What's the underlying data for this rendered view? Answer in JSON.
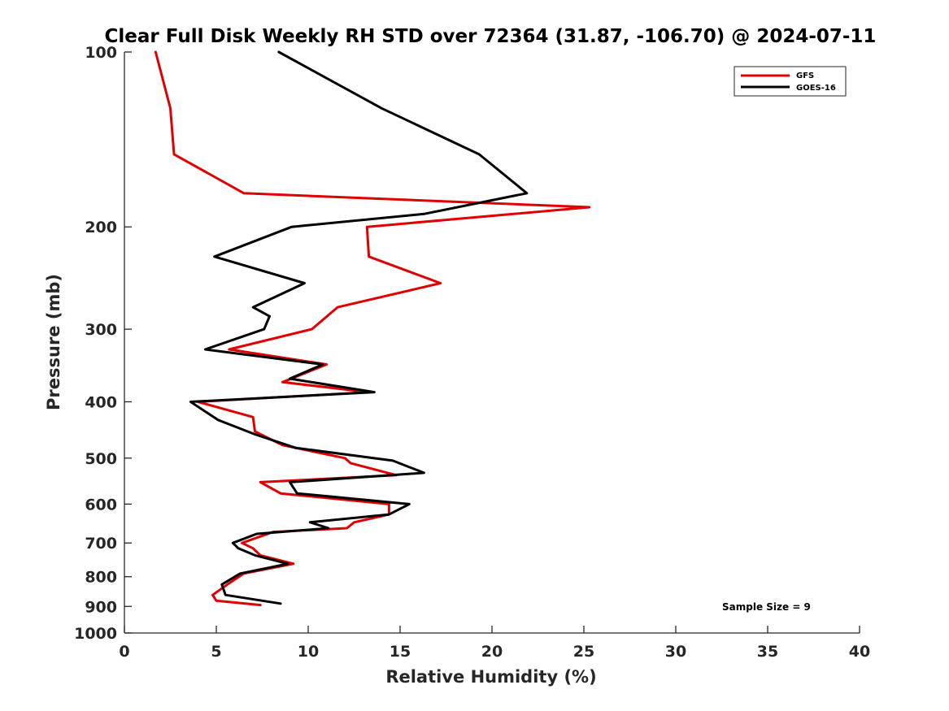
{
  "chart_data": {
    "type": "line",
    "title": "Clear Full Disk Weekly RH STD over 72364 (31.87, -106.70) @ 2024-07-11",
    "xlabel": "Relative Humidity (%)",
    "ylabel": "Pressure (mb)",
    "xlim": [
      0,
      40
    ],
    "ylim": [
      1000,
      100
    ],
    "y_scale": "log",
    "y_reversed": true,
    "xticks": [
      0,
      5,
      10,
      15,
      20,
      25,
      30,
      35,
      40
    ],
    "yticks": [
      100,
      200,
      300,
      400,
      500,
      600,
      700,
      800,
      900,
      1000
    ],
    "grid": false,
    "legend_position": "top-right",
    "annotation": "Sample Size = 9",
    "series": [
      {
        "name": "GFS",
        "color": "#e00000",
        "points": [
          [
            1.7,
            100
          ],
          [
            2.5,
            125
          ],
          [
            2.7,
            150
          ],
          [
            6.5,
            175
          ],
          [
            25.3,
            185
          ],
          [
            13.2,
            200
          ],
          [
            13.3,
            225
          ],
          [
            17.2,
            250
          ],
          [
            11.6,
            275
          ],
          [
            10.2,
            300
          ],
          [
            5.7,
            325
          ],
          [
            11.0,
            345
          ],
          [
            8.6,
            370
          ],
          [
            13.3,
            385
          ],
          [
            4.0,
            400
          ],
          [
            7.0,
            425
          ],
          [
            7.1,
            450
          ],
          [
            8.6,
            475
          ],
          [
            12.0,
            500
          ],
          [
            12.3,
            510
          ],
          [
            14.8,
            535
          ],
          [
            7.4,
            550
          ],
          [
            8.5,
            575
          ],
          [
            14.4,
            600
          ],
          [
            14.4,
            625
          ],
          [
            12.5,
            645
          ],
          [
            12.1,
            660
          ],
          [
            8.1,
            670
          ],
          [
            6.4,
            700
          ],
          [
            7.0,
            715
          ],
          [
            7.4,
            735
          ],
          [
            9.2,
            760
          ],
          [
            6.5,
            790
          ],
          [
            5.6,
            825
          ],
          [
            4.8,
            860
          ],
          [
            5.0,
            880
          ],
          [
            7.4,
            895
          ]
        ]
      },
      {
        "name": "GOES-16",
        "color": "#000000",
        "points": [
          [
            8.4,
            100
          ],
          [
            14.0,
            125
          ],
          [
            19.3,
            150
          ],
          [
            21.9,
            175
          ],
          [
            16.3,
            190
          ],
          [
            9.1,
            200
          ],
          [
            4.9,
            225
          ],
          [
            9.8,
            250
          ],
          [
            7.0,
            275
          ],
          [
            7.9,
            285
          ],
          [
            7.6,
            300
          ],
          [
            4.4,
            325
          ],
          [
            10.8,
            345
          ],
          [
            9.0,
            365
          ],
          [
            13.6,
            385
          ],
          [
            3.6,
            400
          ],
          [
            5.1,
            430
          ],
          [
            7.1,
            455
          ],
          [
            9.3,
            480
          ],
          [
            14.6,
            505
          ],
          [
            16.3,
            530
          ],
          [
            9.0,
            550
          ],
          [
            9.4,
            575
          ],
          [
            15.5,
            600
          ],
          [
            14.4,
            625
          ],
          [
            10.1,
            645
          ],
          [
            11.1,
            660
          ],
          [
            7.2,
            675
          ],
          [
            5.9,
            700
          ],
          [
            6.2,
            715
          ],
          [
            7.1,
            735
          ],
          [
            8.9,
            760
          ],
          [
            6.3,
            790
          ],
          [
            5.3,
            825
          ],
          [
            5.5,
            860
          ],
          [
            8.5,
            890
          ]
        ]
      }
    ]
  }
}
